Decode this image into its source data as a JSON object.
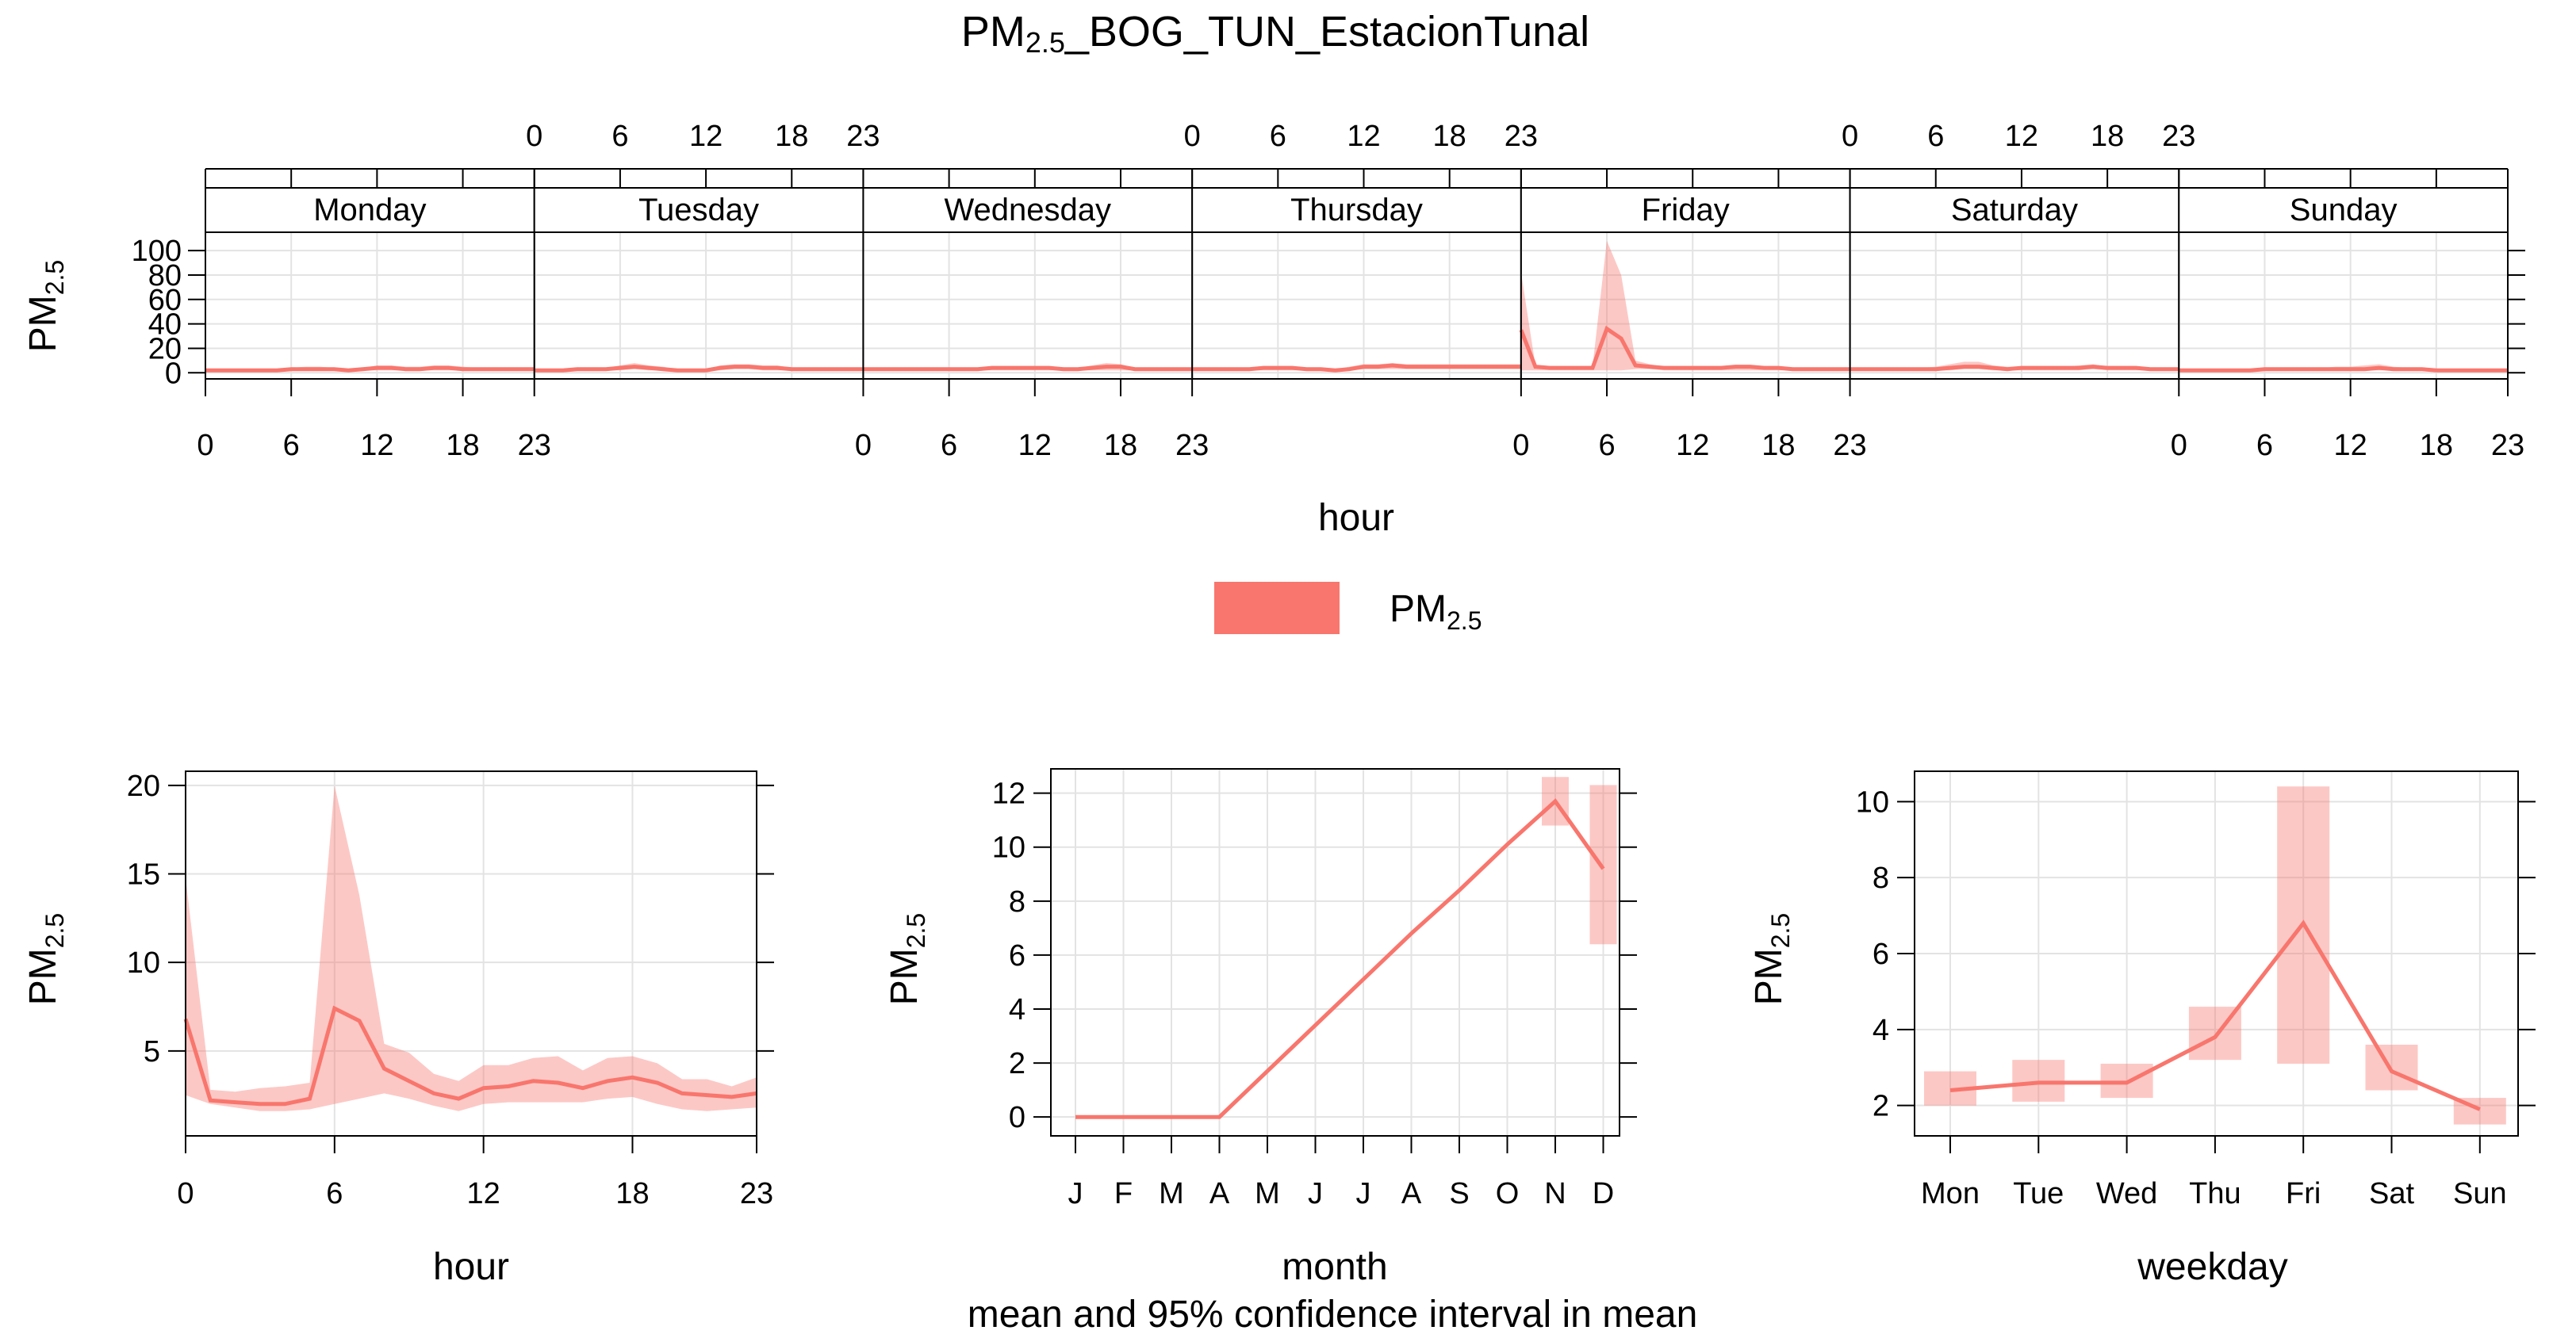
{
  "title": {
    "main": "PM",
    "sub": "2.5",
    "suffix": "_BOG_TUN_EstacionTunal"
  },
  "caption": "mean and 95% confidence interval in mean",
  "legend": {
    "label": "PM",
    "label_sub": "2.5",
    "color": "#F8766D"
  },
  "colors": {
    "line": "#F8766D",
    "band": "#F8766D",
    "grid": "#E3E3E3",
    "strip_bg": "#FFFFFF"
  },
  "chart_data": [
    {
      "type": "area",
      "panel": "day-hour",
      "ylabel": "PM",
      "ylabel_sub": "2.5",
      "xlabel": "hour",
      "x_ticks": [
        "0",
        "6",
        "12",
        "18",
        "23"
      ],
      "y_ticks": [
        "0",
        "20",
        "40",
        "60",
        "80",
        "100"
      ],
      "ylim": [
        -5,
        115
      ],
      "days": [
        {
          "name": "Monday",
          "mean": [
            2,
            2,
            2,
            2,
            2,
            2,
            3,
            3,
            3,
            3,
            2,
            3,
            4,
            4,
            3,
            3,
            4,
            4,
            3,
            3,
            3,
            3,
            3,
            3
          ],
          "lower": [
            1,
            1,
            1,
            1,
            1,
            1,
            2,
            2,
            2,
            2,
            1,
            2,
            2,
            2,
            2,
            2,
            2,
            2,
            2,
            2,
            2,
            2,
            2,
            2
          ],
          "upper": [
            3,
            3,
            3,
            3,
            3,
            3,
            4,
            5,
            5,
            4,
            3,
            4,
            6,
            6,
            5,
            5,
            6,
            6,
            5,
            4,
            4,
            4,
            4,
            4
          ]
        },
        {
          "name": "Tuesday",
          "mean": [
            2,
            2,
            2,
            3,
            3,
            3,
            4,
            5,
            4,
            3,
            2,
            2,
            2,
            4,
            5,
            5,
            4,
            4,
            3,
            3,
            3,
            3,
            3,
            3
          ],
          "lower": [
            1,
            1,
            1,
            2,
            2,
            2,
            2,
            3,
            2,
            2,
            1,
            1,
            1,
            2,
            3,
            3,
            2,
            2,
            2,
            2,
            2,
            2,
            2,
            2
          ],
          "upper": [
            3,
            3,
            3,
            4,
            4,
            4,
            6,
            8,
            6,
            5,
            3,
            3,
            3,
            6,
            7,
            7,
            6,
            6,
            4,
            4,
            4,
            4,
            4,
            4
          ]
        },
        {
          "name": "Wednesday",
          "mean": [
            3,
            3,
            3,
            3,
            3,
            3,
            3,
            3,
            3,
            4,
            4,
            4,
            4,
            4,
            3,
            3,
            4,
            5,
            5,
            3,
            3,
            3,
            3,
            3
          ],
          "lower": [
            2,
            2,
            2,
            2,
            2,
            2,
            2,
            2,
            2,
            2,
            2,
            2,
            2,
            2,
            2,
            2,
            2,
            2,
            2,
            2,
            2,
            2,
            2,
            2
          ],
          "upper": [
            4,
            4,
            4,
            4,
            4,
            4,
            4,
            4,
            4,
            5,
            5,
            5,
            5,
            5,
            4,
            4,
            6,
            8,
            7,
            4,
            4,
            4,
            4,
            4
          ]
        },
        {
          "name": "Thursday",
          "mean": [
            3,
            3,
            3,
            3,
            3,
            4,
            4,
            4,
            3,
            3,
            2,
            3,
            5,
            5,
            6,
            5,
            5,
            5,
            5,
            5,
            5,
            5,
            5,
            5
          ],
          "lower": [
            2,
            2,
            2,
            2,
            2,
            2,
            2,
            2,
            2,
            2,
            1,
            2,
            3,
            3,
            3,
            3,
            3,
            3,
            3,
            3,
            3,
            3,
            3,
            3
          ],
          "upper": [
            4,
            4,
            4,
            4,
            4,
            5,
            5,
            5,
            4,
            4,
            3,
            5,
            7,
            7,
            8,
            7,
            7,
            7,
            7,
            7,
            7,
            7,
            7,
            7
          ]
        },
        {
          "name": "Friday",
          "mean": [
            35,
            5,
            4,
            4,
            4,
            4,
            36,
            28,
            6,
            5,
            4,
            4,
            4,
            4,
            4,
            5,
            5,
            4,
            4,
            3,
            3,
            3,
            3,
            3
          ],
          "lower": [
            2,
            2,
            2,
            2,
            2,
            2,
            2,
            2,
            3,
            3,
            2,
            2,
            2,
            2,
            2,
            2,
            2,
            2,
            2,
            2,
            2,
            2,
            2,
            2
          ],
          "upper": [
            82,
            6,
            5,
            5,
            5,
            5,
            108,
            80,
            10,
            7,
            5,
            5,
            5,
            5,
            5,
            6,
            6,
            5,
            5,
            4,
            4,
            4,
            4,
            4
          ]
        },
        {
          "name": "Saturday",
          "mean": [
            3,
            3,
            3,
            3,
            3,
            3,
            3,
            4,
            5,
            5,
            4,
            3,
            4,
            4,
            4,
            4,
            4,
            5,
            4,
            4,
            4,
            3,
            3,
            3
          ],
          "lower": [
            2,
            2,
            2,
            2,
            2,
            2,
            2,
            2,
            3,
            3,
            2,
            2,
            2,
            2,
            2,
            2,
            2,
            3,
            2,
            2,
            2,
            2,
            2,
            2
          ],
          "upper": [
            4,
            4,
            4,
            4,
            4,
            4,
            5,
            7,
            9,
            9,
            6,
            5,
            5,
            5,
            5,
            5,
            6,
            7,
            5,
            5,
            5,
            4,
            4,
            4
          ]
        },
        {
          "name": "Sunday",
          "mean": [
            2,
            2,
            2,
            2,
            2,
            2,
            3,
            3,
            3,
            3,
            3,
            3,
            3,
            3,
            4,
            3,
            3,
            3,
            2,
            2,
            2,
            2,
            2,
            2
          ],
          "lower": [
            1,
            1,
            1,
            1,
            1,
            1,
            2,
            2,
            2,
            2,
            2,
            2,
            2,
            2,
            2,
            2,
            2,
            2,
            1,
            1,
            1,
            1,
            1,
            1
          ],
          "upper": [
            3,
            3,
            3,
            3,
            3,
            3,
            4,
            4,
            4,
            4,
            4,
            5,
            5,
            6,
            7,
            5,
            4,
            4,
            3,
            3,
            3,
            3,
            3,
            3
          ]
        }
      ]
    },
    {
      "type": "line",
      "panel": "hour",
      "xlabel": "hour",
      "ylabel": "PM",
      "ylabel_sub": "2.5",
      "x_ticks": [
        "0",
        "6",
        "12",
        "18",
        "23"
      ],
      "y_ticks": [
        "5",
        "10",
        "15",
        "20"
      ],
      "ylim": [
        0.2,
        20.8
      ],
      "x": [
        0,
        1,
        2,
        3,
        4,
        5,
        6,
        7,
        8,
        9,
        10,
        11,
        12,
        13,
        14,
        15,
        16,
        17,
        18,
        19,
        20,
        21,
        22,
        23
      ],
      "mean": [
        6.8,
        2.2,
        2.1,
        2.0,
        2.0,
        2.3,
        7.4,
        6.7,
        4.0,
        3.3,
        2.6,
        2.3,
        2.9,
        3.0,
        3.3,
        3.2,
        2.9,
        3.3,
        3.5,
        3.2,
        2.6,
        2.5,
        2.4,
        2.6
      ],
      "lower": [
        2.5,
        2.0,
        1.8,
        1.6,
        1.6,
        1.7,
        2.0,
        2.3,
        2.6,
        2.3,
        1.9,
        1.6,
        2.0,
        2.1,
        2.1,
        2.1,
        2.1,
        2.3,
        2.4,
        2.0,
        1.7,
        1.6,
        1.7,
        1.8
      ],
      "upper": [
        14.8,
        2.8,
        2.7,
        2.9,
        3.0,
        3.2,
        20.0,
        13.8,
        5.4,
        4.9,
        3.7,
        3.3,
        4.2,
        4.2,
        4.6,
        4.7,
        3.9,
        4.6,
        4.7,
        4.3,
        3.4,
        3.4,
        3.0,
        3.5
      ]
    },
    {
      "type": "line",
      "panel": "month",
      "xlabel": "month",
      "ylabel": "PM",
      "ylabel_sub": "2.5",
      "categories": [
        "J",
        "F",
        "M",
        "A",
        "M",
        "J",
        "J",
        "A",
        "S",
        "O",
        "N",
        "D"
      ],
      "y_ticks": [
        "0",
        "2",
        "4",
        "6",
        "8",
        "10",
        "12"
      ],
      "ylim": [
        -0.7,
        12.9
      ],
      "mean": [
        0,
        0,
        0,
        0,
        1.7,
        3.4,
        5.1,
        6.8,
        8.4,
        10.1,
        11.7,
        9.2
      ],
      "bars": [
        {
          "index": 10,
          "lower": 10.8,
          "upper": 12.6
        },
        {
          "index": 11,
          "lower": 6.4,
          "upper": 12.3
        }
      ]
    },
    {
      "type": "line",
      "panel": "weekday",
      "xlabel": "weekday",
      "ylabel": "PM",
      "ylabel_sub": "2.5",
      "categories": [
        "Mon",
        "Tue",
        "Wed",
        "Thu",
        "Fri",
        "Sat",
        "Sun"
      ],
      "y_ticks": [
        "2",
        "4",
        "6",
        "8",
        "10"
      ],
      "ylim": [
        1.2,
        10.8
      ],
      "mean": [
        2.4,
        2.6,
        2.6,
        3.8,
        6.8,
        2.9,
        1.9
      ],
      "lower": [
        2.0,
        2.1,
        2.2,
        3.2,
        3.1,
        2.4,
        1.5
      ],
      "upper": [
        2.9,
        3.2,
        3.1,
        4.6,
        10.4,
        3.6,
        2.2
      ]
    }
  ]
}
